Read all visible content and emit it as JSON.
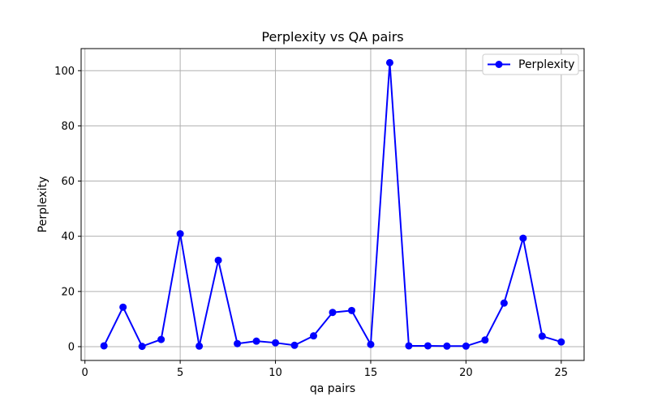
{
  "chart_data": {
    "type": "line",
    "title": "Perplexity vs QA pairs",
    "xlabel": "qa pairs",
    "ylabel": "Perplexity",
    "xlim": [
      -0.2,
      26.2
    ],
    "ylim": [
      -5.0,
      108.0
    ],
    "xticks": [
      0,
      5,
      10,
      15,
      20,
      25
    ],
    "yticks": [
      0,
      20,
      40,
      60,
      80,
      100
    ],
    "grid": true,
    "legend_position": "top-right",
    "series": [
      {
        "name": "Perplexity",
        "color": "#0000ff",
        "marker": "circle",
        "x": [
          1,
          2,
          3,
          4,
          5,
          6,
          7,
          8,
          9,
          10,
          11,
          12,
          13,
          14,
          15,
          16,
          17,
          18,
          19,
          20,
          21,
          22,
          23,
          24,
          25
        ],
        "values": [
          0.3,
          14.3,
          0.1,
          2.6,
          40.9,
          0.2,
          31.3,
          1.1,
          2.0,
          1.4,
          0.5,
          3.9,
          12.4,
          13.1,
          0.8,
          102.9,
          0.3,
          0.3,
          0.2,
          0.2,
          2.4,
          15.8,
          39.3,
          3.8,
          1.7
        ]
      }
    ]
  }
}
